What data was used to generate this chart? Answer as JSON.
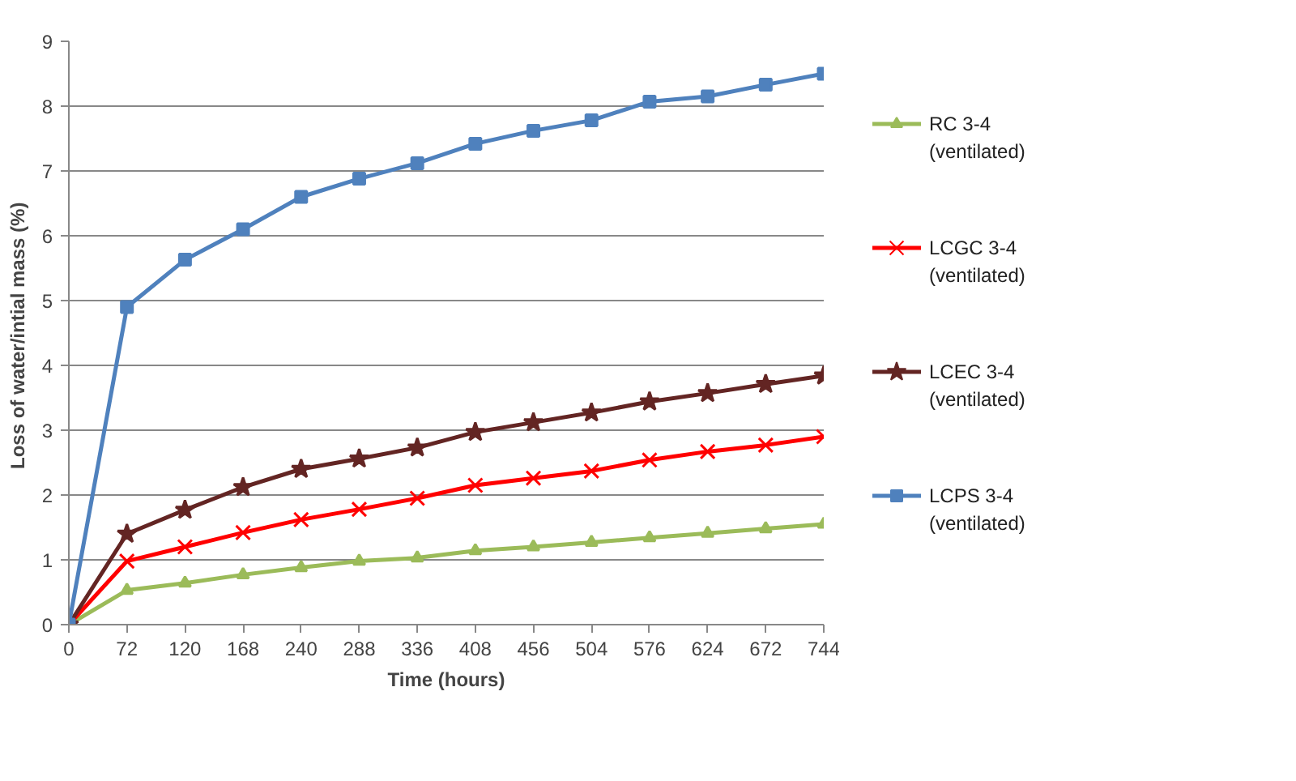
{
  "chart_data": {
    "type": "line",
    "xlabel": "Time (hours)",
    "ylabel": "Loss of water/intial mass  (%)",
    "categories": [
      "0",
      "72",
      "120",
      "168",
      "240",
      "288",
      "336",
      "408",
      "456",
      "504",
      "576",
      "624",
      "672",
      "744"
    ],
    "ylim": [
      0,
      9
    ],
    "yticks": [
      0,
      1,
      2,
      3,
      4,
      5,
      6,
      7,
      8,
      9
    ],
    "grid": "y",
    "legend": "right",
    "series": [
      {
        "name": "RC 3-4 (ventilated)",
        "color": "#9bbb59",
        "marker": "triangle",
        "values": [
          0,
          0.53,
          0.64,
          0.77,
          0.88,
          0.98,
          1.03,
          1.14,
          1.2,
          1.27,
          1.34,
          1.41,
          1.48,
          1.55
        ]
      },
      {
        "name": "LCGC 3-4 (ventilated)",
        "color": "#ff0000",
        "marker": "cross",
        "values": [
          0,
          0.98,
          1.2,
          1.42,
          1.62,
          1.78,
          1.95,
          2.15,
          2.26,
          2.37,
          2.54,
          2.67,
          2.77,
          2.9
        ]
      },
      {
        "name": "LCEC 3-4 (ventilated)",
        "color": "#632523",
        "marker": "star",
        "values": [
          0,
          1.4,
          1.77,
          2.12,
          2.4,
          2.56,
          2.73,
          2.97,
          3.12,
          3.27,
          3.44,
          3.57,
          3.71,
          3.84
        ]
      },
      {
        "name": "LCPS 3-4 (ventilated)",
        "color": "#4f81bd",
        "marker": "square",
        "values": [
          0,
          4.9,
          5.63,
          6.1,
          6.6,
          6.88,
          7.12,
          7.42,
          7.62,
          7.78,
          8.07,
          8.15,
          8.33,
          8.5
        ]
      }
    ]
  }
}
